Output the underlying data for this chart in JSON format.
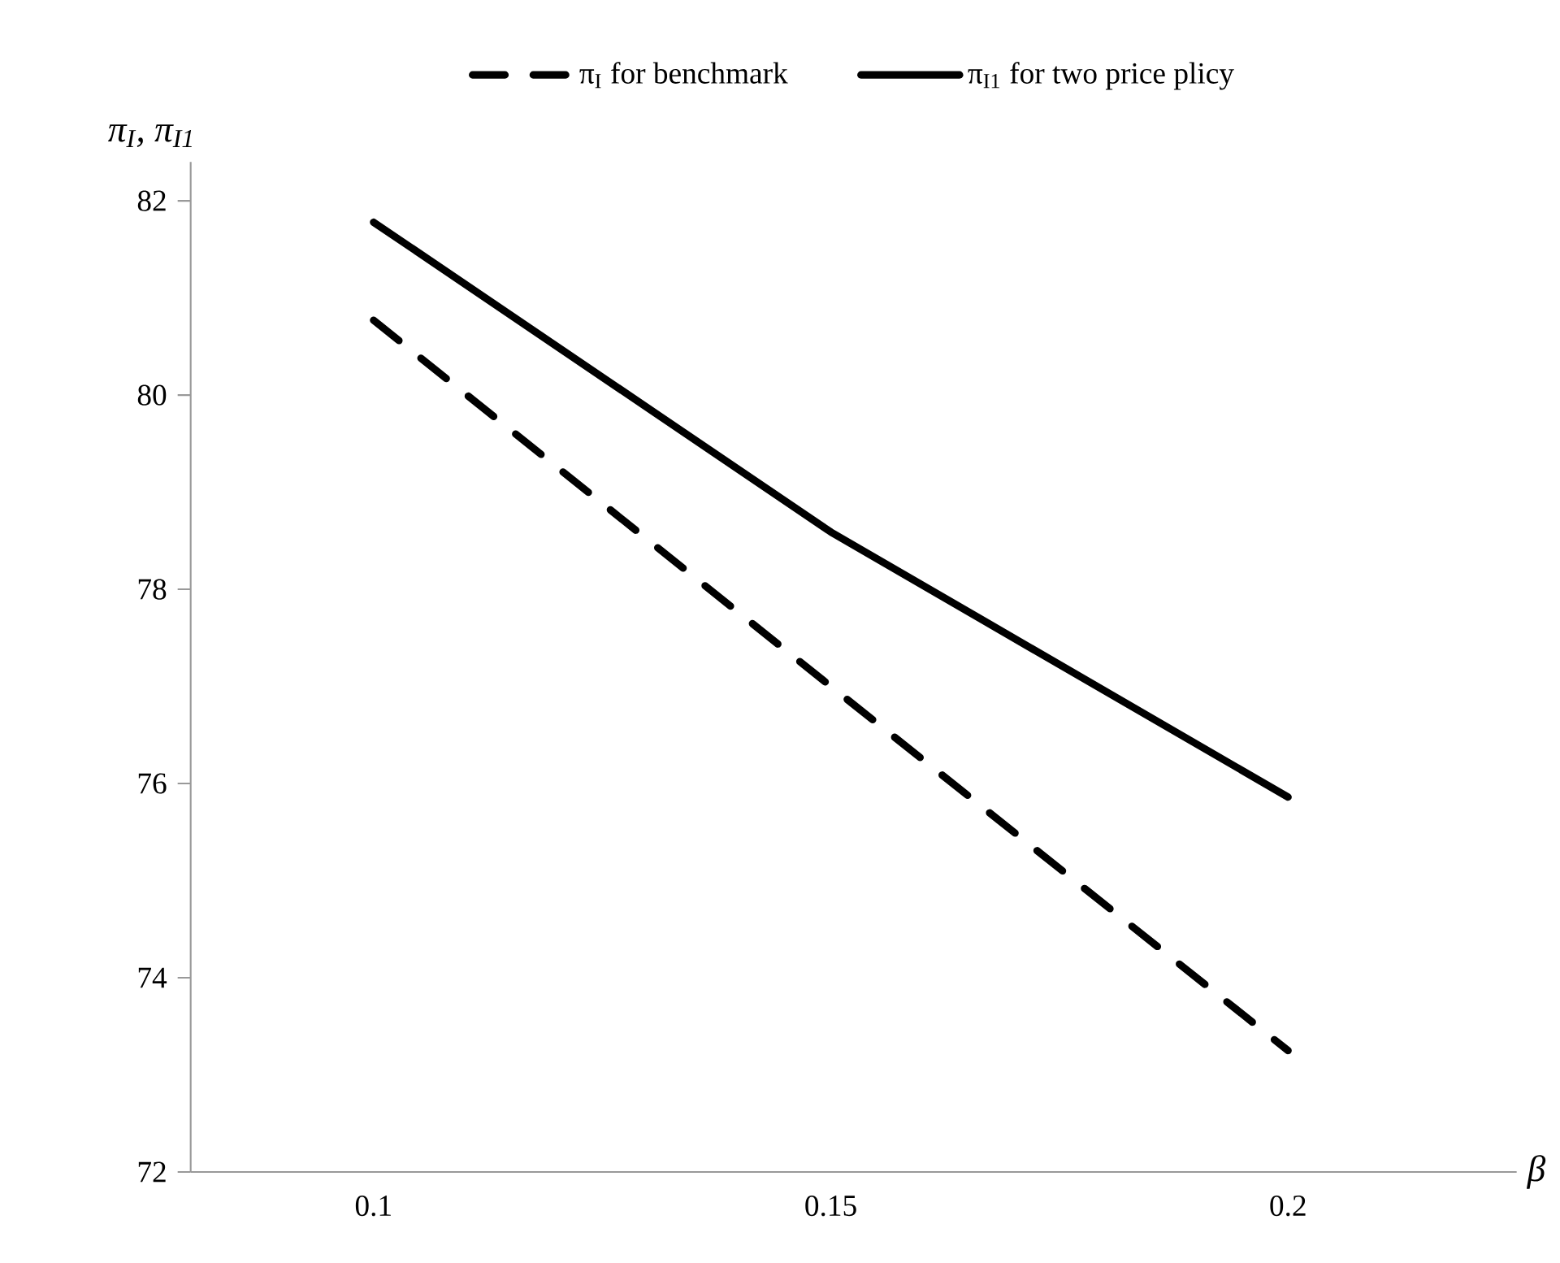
{
  "chart_data": {
    "type": "line",
    "xlabel": "β",
    "ylabel": "π$_{I}$, π$_{I1}$",
    "categories": [
      "0.1",
      "0.15",
      "0.2"
    ],
    "ylim": [
      72,
      82.4
    ],
    "yticks": [
      72,
      74,
      76,
      78,
      80,
      82
    ],
    "legend": "top",
    "marker": "none",
    "series": [
      {
        "name": "π$_{I}$ for benchmark",
        "color": "#000000",
        "line_style": "dashed",
        "values": [
          80.77,
          77.0,
          73.25
        ]
      },
      {
        "name": "π$_{I1}$ for two price plicy",
        "color": "#000000",
        "line_style": "solid",
        "values": [
          81.78,
          78.59,
          75.86
        ]
      }
    ]
  }
}
